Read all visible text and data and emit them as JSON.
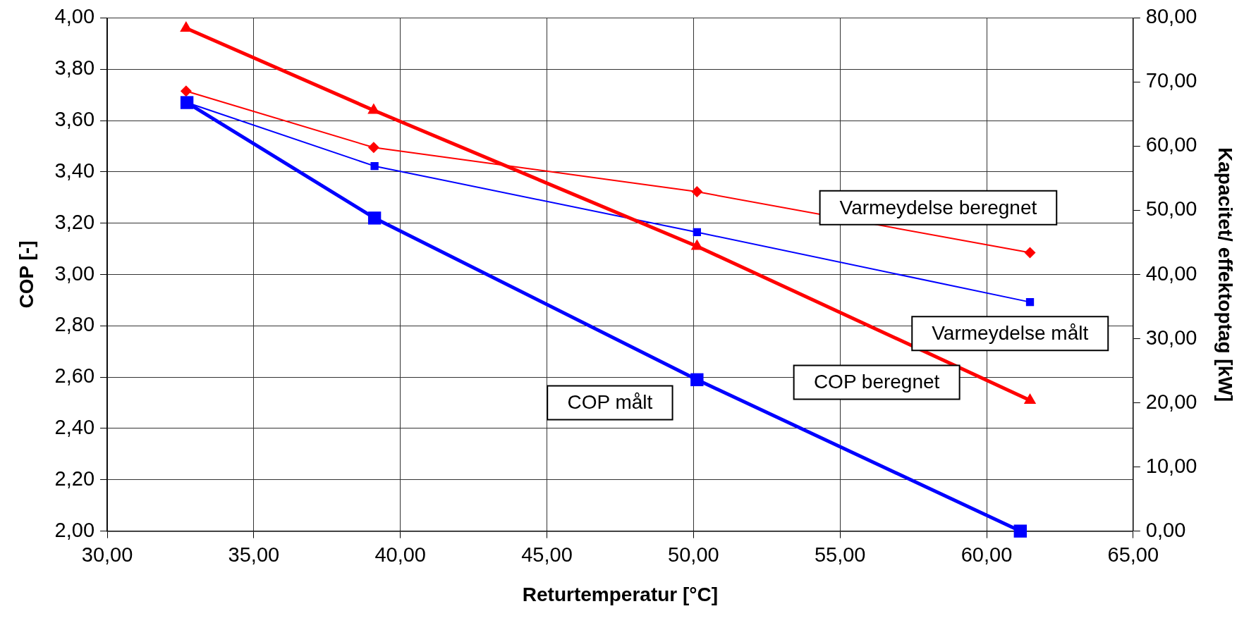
{
  "chart_data": {
    "type": "line",
    "xlabel": "Returtemperatur [°C]",
    "ylabel": "COP [-]",
    "y2label": "Kapacitet/ effektoptag [kW]",
    "xlim": [
      30,
      65
    ],
    "xticks": [
      {
        "value": 30,
        "label": "30,00"
      },
      {
        "value": 35,
        "label": "35,00"
      },
      {
        "value": 40,
        "label": "40,00"
      },
      {
        "value": 45,
        "label": "45,00"
      },
      {
        "value": 50,
        "label": "50,00"
      },
      {
        "value": 55,
        "label": "55,00"
      },
      {
        "value": 60,
        "label": "60,00"
      },
      {
        "value": 65,
        "label": "65,00"
      }
    ],
    "ylim": [
      2,
      4
    ],
    "yticks": [
      {
        "value": 2,
        "label": "2,00"
      },
      {
        "value": 2.2,
        "label": "2,20"
      },
      {
        "value": 2.4,
        "label": "2,40"
      },
      {
        "value": 2.6,
        "label": "2,60"
      },
      {
        "value": 2.8,
        "label": "2,80"
      },
      {
        "value": 3,
        "label": "3,00"
      },
      {
        "value": 3.2,
        "label": "3,20"
      },
      {
        "value": 3.4,
        "label": "3,40"
      },
      {
        "value": 3.6,
        "label": "3,60"
      },
      {
        "value": 3.8,
        "label": "3,80"
      },
      {
        "value": 4,
        "label": "4,00"
      }
    ],
    "y2lim": [
      0,
      80
    ],
    "y2ticks": [
      {
        "value": 0,
        "label": "0,00"
      },
      {
        "value": 10,
        "label": "10,00"
      },
      {
        "value": 20,
        "label": "20,00"
      },
      {
        "value": 30,
        "label": "30,00"
      },
      {
        "value": 40,
        "label": "40,00"
      },
      {
        "value": 50,
        "label": "50,00"
      },
      {
        "value": 60,
        "label": "60,00"
      },
      {
        "value": 70,
        "label": "70,00"
      },
      {
        "value": 80,
        "label": "80,00"
      }
    ],
    "grid": true,
    "legend": false,
    "series": [
      {
        "name": "COP målt",
        "color": "#0000ff",
        "marker": "square",
        "x": [
          32.72,
          39.12,
          50.12,
          61.15
        ],
        "values": [
          3.67,
          3.22,
          2.59,
          2.0
        ]
      },
      {
        "name": "COP beregnet",
        "color": "#ff0000",
        "marker": "triangle",
        "x": [
          32.69,
          39.09,
          50.12,
          61.48
        ],
        "values": [
          3.96,
          3.64,
          3.11,
          2.51
        ]
      },
      {
        "name": "Varmeydelse målt",
        "color": "#0000ff",
        "marker": "square",
        "axis": "y2",
        "x": [
          32.72,
          39.12,
          50.12,
          61.48
        ],
        "values": [
          66.8,
          56.9,
          46.6,
          35.7
        ]
      },
      {
        "name": "Varmeydelse beregnet",
        "color": "#ff0000",
        "marker": "diamond",
        "axis": "y2",
        "x": [
          32.69,
          39.09,
          50.12,
          61.48
        ],
        "values": [
          68.6,
          59.8,
          52.9,
          43.4
        ]
      }
    ]
  }
}
